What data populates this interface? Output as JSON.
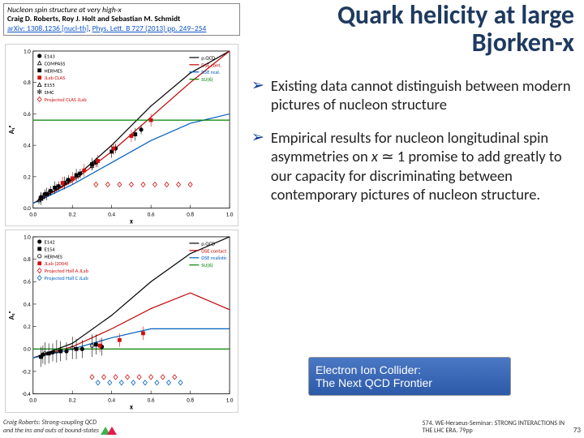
{
  "header": {
    "title": "Nucleon spin structure at very high-x",
    "authors": "Craig D. Roberts, Roy J. Holt and Sebastian M. Schmidt",
    "ref_arxiv": "arXiv: 1308.1236 [nucl-th]",
    "ref_journal": "Phys. Lett. B 727 (2013) pp. 249–254"
  },
  "main_title": "Quark helicity at large Bjorken-x",
  "bullets": [
    "Existing data cannot distinguish between modern pictures of nucleon structure",
    "Empirical results for nucleon longitudinal spin asymmetries on x ≃ 1 promise to add greatly to our capacity for discriminating between contemporary pictures of nucleon structure."
  ],
  "eic": {
    "line1": "Electron Ion Collider:",
    "line2": "The Next QCD Frontier"
  },
  "footer_left": {
    "line1": "Craig Roberts: Strong-coupling QCD",
    "line2": "and the ins and outs of bound-states"
  },
  "footer_right": {
    "line1": "574. WE-Heraeus-Seminar: STRONG INTERACTIONS IN",
    "line2": "THE LHC ERA. 79pp"
  },
  "page_num": "73",
  "chart_top": {
    "type": "scatter",
    "ylabel": "A₁ᵖ",
    "xlabel": "x",
    "xlim": [
      0.0,
      1.0
    ],
    "ylim": [
      0.0,
      1.0
    ],
    "xtick_step": 0.2,
    "ytick_step": 0.2,
    "background_color": "#ffffff",
    "grid": false,
    "legend_markers": [
      {
        "label": "E143",
        "marker": "circle",
        "color": "#000000",
        "fill": "#000000"
      },
      {
        "label": "COMPASS",
        "marker": "triangle",
        "color": "#000000",
        "fill": "none"
      },
      {
        "label": "HERMES",
        "marker": "square",
        "color": "#000000",
        "fill": "#000000"
      },
      {
        "label": "JLab CLAS",
        "marker": "square",
        "color": "#d01010",
        "fill": "#d01010"
      },
      {
        "label": "E155",
        "marker": "triangle-open",
        "color": "#000000",
        "fill": "none"
      },
      {
        "label": "SMC",
        "marker": "star",
        "color": "#000000",
        "fill": "none"
      },
      {
        "label": "Projected CLAS JLab",
        "marker": "diamond",
        "color": "#d01010",
        "fill": "none"
      }
    ],
    "legend_lines_right": [
      {
        "label": "p.QCD",
        "color": "#000000",
        "width": 1.2,
        "dash": "none"
      },
      {
        "label": "DSE cont.",
        "color": "#c00000",
        "width": 1.2,
        "dash": "none"
      },
      {
        "label": "DSE real.",
        "color": "#0060c0",
        "width": 1.2,
        "dash": "none"
      },
      {
        "label": "SU(6)",
        "color": "#008000",
        "width": 1.2,
        "dash": "none"
      }
    ],
    "data_series": [
      {
        "name": "E143",
        "marker": "circle",
        "color": "#000000",
        "points": [
          [
            0.04,
            0.07
          ],
          [
            0.06,
            0.09
          ],
          [
            0.09,
            0.11
          ],
          [
            0.13,
            0.14
          ],
          [
            0.18,
            0.18
          ],
          [
            0.24,
            0.22
          ],
          [
            0.32,
            0.29
          ],
          [
            0.42,
            0.38
          ],
          [
            0.55,
            0.5
          ]
        ],
        "yerr": 0.03
      },
      {
        "name": "COMPASS",
        "marker": "triangle",
        "color": "#000000",
        "points": [
          [
            0.03,
            0.05
          ],
          [
            0.05,
            0.07
          ],
          [
            0.08,
            0.1
          ],
          [
            0.12,
            0.13
          ],
          [
            0.17,
            0.17
          ],
          [
            0.23,
            0.21
          ],
          [
            0.3,
            0.27
          ]
        ],
        "yerr": 0.025
      },
      {
        "name": "HERMES",
        "marker": "square",
        "color": "#000000",
        "points": [
          [
            0.04,
            0.06
          ],
          [
            0.07,
            0.09
          ],
          [
            0.11,
            0.13
          ],
          [
            0.16,
            0.16
          ],
          [
            0.22,
            0.21
          ],
          [
            0.3,
            0.28
          ],
          [
            0.4,
            0.36
          ],
          [
            0.52,
            0.47
          ]
        ],
        "yerr": 0.04
      },
      {
        "name": "JLab CLAS",
        "marker": "square",
        "color": "#d01010",
        "points": [
          [
            0.15,
            0.16
          ],
          [
            0.2,
            0.19
          ],
          [
            0.26,
            0.24
          ],
          [
            0.33,
            0.3
          ],
          [
            0.41,
            0.38
          ],
          [
            0.5,
            0.46
          ],
          [
            0.6,
            0.56
          ]
        ],
        "yerr": 0.04
      },
      {
        "name": "Projected",
        "marker": "diamond",
        "color": "#d01010",
        "points": [
          [
            0.32,
            0.15
          ],
          [
            0.38,
            0.15
          ],
          [
            0.44,
            0.15
          ],
          [
            0.5,
            0.15
          ],
          [
            0.56,
            0.15
          ],
          [
            0.62,
            0.15
          ],
          [
            0.68,
            0.15
          ],
          [
            0.74,
            0.15
          ],
          [
            0.8,
            0.15
          ]
        ],
        "yerr": 0
      }
    ],
    "curves": [
      {
        "name": "pQCD",
        "color": "#000000",
        "points": [
          [
            0.0,
            0.03
          ],
          [
            0.2,
            0.18
          ],
          [
            0.4,
            0.4
          ],
          [
            0.6,
            0.65
          ],
          [
            0.8,
            0.86
          ],
          [
            1.0,
            1.0
          ]
        ]
      },
      {
        "name": "DSE cont",
        "color": "#c00000",
        "points": [
          [
            0.0,
            0.03
          ],
          [
            0.2,
            0.17
          ],
          [
            0.4,
            0.36
          ],
          [
            0.6,
            0.58
          ],
          [
            0.8,
            0.8
          ],
          [
            1.0,
            1.0
          ]
        ]
      },
      {
        "name": "DSE real",
        "color": "#0060c0",
        "points": [
          [
            0.0,
            0.03
          ],
          [
            0.2,
            0.15
          ],
          [
            0.4,
            0.29
          ],
          [
            0.6,
            0.43
          ],
          [
            0.8,
            0.54
          ],
          [
            1.0,
            0.6
          ]
        ]
      },
      {
        "name": "SU6",
        "color": "#008000",
        "points": [
          [
            0.0,
            0.56
          ],
          [
            1.0,
            0.56
          ]
        ]
      }
    ]
  },
  "chart_bottom": {
    "type": "scatter",
    "ylabel": "A₁ⁿ",
    "xlabel": "x",
    "xlim": [
      0.0,
      1.0
    ],
    "ylim": [
      -0.4,
      1.0
    ],
    "xtick_step": 0.2,
    "ytick_step": 0.2,
    "background_color": "#ffffff",
    "legend_markers": [
      {
        "label": "E142",
        "marker": "circle",
        "color": "#000000",
        "fill": "#000000"
      },
      {
        "label": "E154",
        "marker": "square",
        "color": "#000000",
        "fill": "#000000"
      },
      {
        "label": "HERMES",
        "marker": "circle",
        "color": "#000000",
        "fill": "none"
      },
      {
        "label": "JLab (2004)",
        "marker": "square",
        "color": "#d01010",
        "fill": "#d01010"
      },
      {
        "label": "Projected Hall A JLab",
        "marker": "diamond",
        "color": "#d01010",
        "fill": "none"
      },
      {
        "label": "Projected Hall C JLab",
        "marker": "diamond",
        "color": "#0060c0",
        "fill": "none"
      }
    ],
    "legend_lines_right": [
      {
        "label": "p.QCD",
        "color": "#000000"
      },
      {
        "label": "DSE contact",
        "color": "#c00000"
      },
      {
        "label": "DSE realistic",
        "color": "#0060c0"
      },
      {
        "label": "SU(6)",
        "color": "#008000"
      }
    ],
    "data_series": [
      {
        "name": "E142",
        "marker": "circle",
        "color": "#000000",
        "points": [
          [
            0.05,
            -0.05
          ],
          [
            0.1,
            -0.03
          ],
          [
            0.17,
            -0.02
          ],
          [
            0.25,
            0.0
          ],
          [
            0.35,
            0.02
          ]
        ],
        "yerr": 0.08
      },
      {
        "name": "E154",
        "marker": "square",
        "color": "#000000",
        "points": [
          [
            0.04,
            -0.07
          ],
          [
            0.08,
            -0.04
          ],
          [
            0.14,
            -0.02
          ],
          [
            0.22,
            0.0
          ],
          [
            0.32,
            0.04
          ]
        ],
        "yerr": 0.09
      },
      {
        "name": "HERMES",
        "marker": "circle-open",
        "color": "#000000",
        "points": [
          [
            0.06,
            -0.04
          ],
          [
            0.12,
            -0.02
          ],
          [
            0.2,
            0.01
          ],
          [
            0.3,
            0.03
          ]
        ],
        "yerr": 0.1
      },
      {
        "name": "JLab",
        "marker": "square",
        "color": "#d01010",
        "points": [
          [
            0.34,
            0.03
          ],
          [
            0.44,
            0.08
          ],
          [
            0.56,
            0.14
          ]
        ],
        "yerr": 0.06
      },
      {
        "name": "ProjA",
        "marker": "diamond",
        "color": "#d01010",
        "points": [
          [
            0.3,
            -0.25
          ],
          [
            0.36,
            -0.25
          ],
          [
            0.42,
            -0.25
          ],
          [
            0.48,
            -0.25
          ],
          [
            0.54,
            -0.25
          ],
          [
            0.6,
            -0.25
          ],
          [
            0.66,
            -0.25
          ],
          [
            0.72,
            -0.25
          ]
        ],
        "yerr": 0
      },
      {
        "name": "ProjC",
        "marker": "diamond",
        "color": "#0060c0",
        "points": [
          [
            0.33,
            -0.3
          ],
          [
            0.39,
            -0.3
          ],
          [
            0.45,
            -0.3
          ],
          [
            0.51,
            -0.3
          ],
          [
            0.57,
            -0.3
          ],
          [
            0.63,
            -0.3
          ],
          [
            0.69,
            -0.3
          ],
          [
            0.75,
            -0.3
          ]
        ],
        "yerr": 0
      }
    ],
    "curves": [
      {
        "name": "pQCD",
        "color": "#000000",
        "points": [
          [
            0.0,
            -0.08
          ],
          [
            0.2,
            0.05
          ],
          [
            0.4,
            0.3
          ],
          [
            0.6,
            0.6
          ],
          [
            0.8,
            0.85
          ],
          [
            1.0,
            1.0
          ]
        ]
      },
      {
        "name": "DSE cont",
        "color": "#c00000",
        "points": [
          [
            0.0,
            -0.08
          ],
          [
            0.2,
            0.02
          ],
          [
            0.4,
            0.18
          ],
          [
            0.6,
            0.36
          ],
          [
            0.8,
            0.5
          ],
          [
            1.0,
            0.35
          ]
        ]
      },
      {
        "name": "DSE real",
        "color": "#0060c0",
        "points": [
          [
            0.0,
            -0.08
          ],
          [
            0.2,
            0.0
          ],
          [
            0.4,
            0.1
          ],
          [
            0.6,
            0.18
          ],
          [
            0.8,
            0.18
          ],
          [
            1.0,
            0.18
          ]
        ]
      },
      {
        "name": "SU6",
        "color": "#008000",
        "points": [
          [
            0.0,
            0.0
          ],
          [
            1.0,
            0.0
          ]
        ]
      }
    ]
  }
}
